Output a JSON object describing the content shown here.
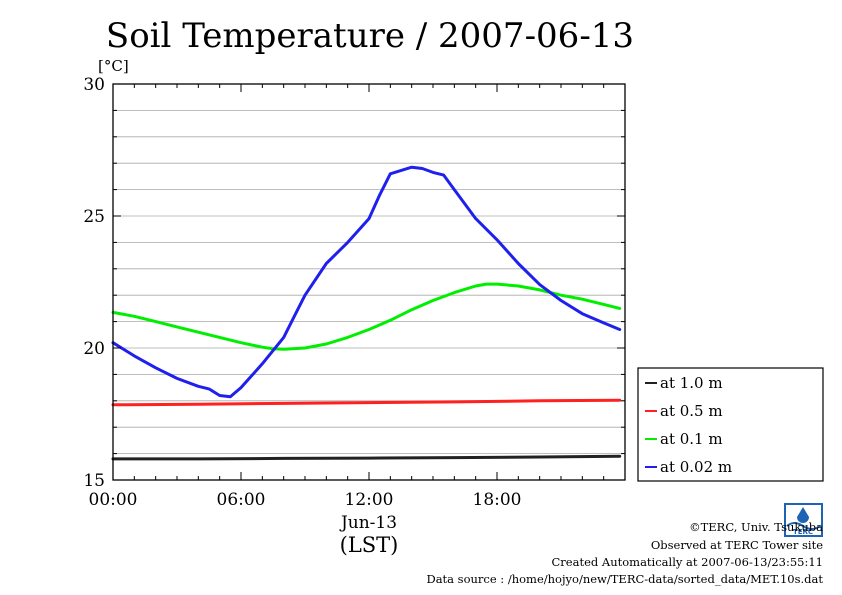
{
  "chart_data": {
    "type": "line",
    "title": "Soil Temperature / 2007-06-13",
    "ylabel": "[°C]",
    "ylim": [
      15,
      30
    ],
    "yticks": [
      15,
      20,
      25,
      30
    ],
    "xlim": [
      0,
      24
    ],
    "xticks": [
      {
        "value": 0,
        "label": "00:00"
      },
      {
        "value": 6,
        "label": "06:00"
      },
      {
        "value": 12,
        "label": "12:00"
      },
      {
        "value": 18,
        "label": "18:00"
      }
    ],
    "date_label": "Jun-13",
    "xlabel": "(LST)",
    "grid": true,
    "legend_position": "right",
    "series": [
      {
        "name": "at 1.0 m",
        "color": "#222222",
        "x": [
          0,
          4,
          8,
          12,
          16,
          20,
          23.75
        ],
        "values": [
          15.8,
          15.8,
          15.82,
          15.83,
          15.85,
          15.87,
          15.9
        ]
      },
      {
        "name": "at 0.5 m",
        "color": "#ff2020",
        "x": [
          0,
          4,
          8,
          12,
          16,
          20,
          23.75
        ],
        "values": [
          17.85,
          17.87,
          17.9,
          17.93,
          17.96,
          18.0,
          18.02
        ]
      },
      {
        "name": "at 0.1 m",
        "color": "#00ee00",
        "x": [
          0,
          1,
          2,
          3,
          4,
          5,
          6,
          7,
          7.5,
          8,
          9,
          10,
          11,
          12,
          13,
          14,
          15,
          16,
          17,
          17.5,
          18,
          19,
          20,
          21,
          22,
          23,
          23.75
        ],
        "values": [
          21.35,
          21.2,
          21.0,
          20.8,
          20.6,
          20.4,
          20.2,
          20.03,
          19.97,
          19.95,
          20.0,
          20.15,
          20.4,
          20.7,
          21.05,
          21.45,
          21.8,
          22.1,
          22.35,
          22.42,
          22.42,
          22.35,
          22.2,
          22.0,
          21.85,
          21.65,
          21.5
        ]
      },
      {
        "name": "at 0.02 m",
        "color": "#2020ee",
        "x": [
          0,
          1,
          2,
          3,
          4,
          4.5,
          5,
          5.5,
          6,
          7,
          8,
          8.5,
          9,
          10,
          11,
          12,
          12.5,
          13,
          14,
          14.5,
          15,
          15.5,
          16,
          17,
          18,
          19,
          20,
          21,
          22,
          23,
          23.75
        ],
        "values": [
          20.2,
          19.7,
          19.25,
          18.85,
          18.55,
          18.45,
          18.2,
          18.15,
          18.5,
          19.4,
          20.4,
          21.2,
          22.0,
          23.2,
          24.0,
          24.9,
          25.8,
          26.6,
          26.85,
          26.8,
          26.65,
          26.55,
          26.0,
          24.9,
          24.1,
          23.2,
          22.4,
          21.8,
          21.3,
          20.95,
          20.7
        ]
      }
    ]
  },
  "credits": {
    "copyright": "©TERC, Univ. Tsukuba",
    "observed": "Observed at TERC Tower site",
    "created": "Created Automatically at 2007-06-13/23:55:11",
    "source": "Data source : /home/hojyo/new/TERC-data/sorted_data/MET.10s.dat"
  },
  "logo": {
    "text": "TERC",
    "color": "#1e64b4"
  }
}
